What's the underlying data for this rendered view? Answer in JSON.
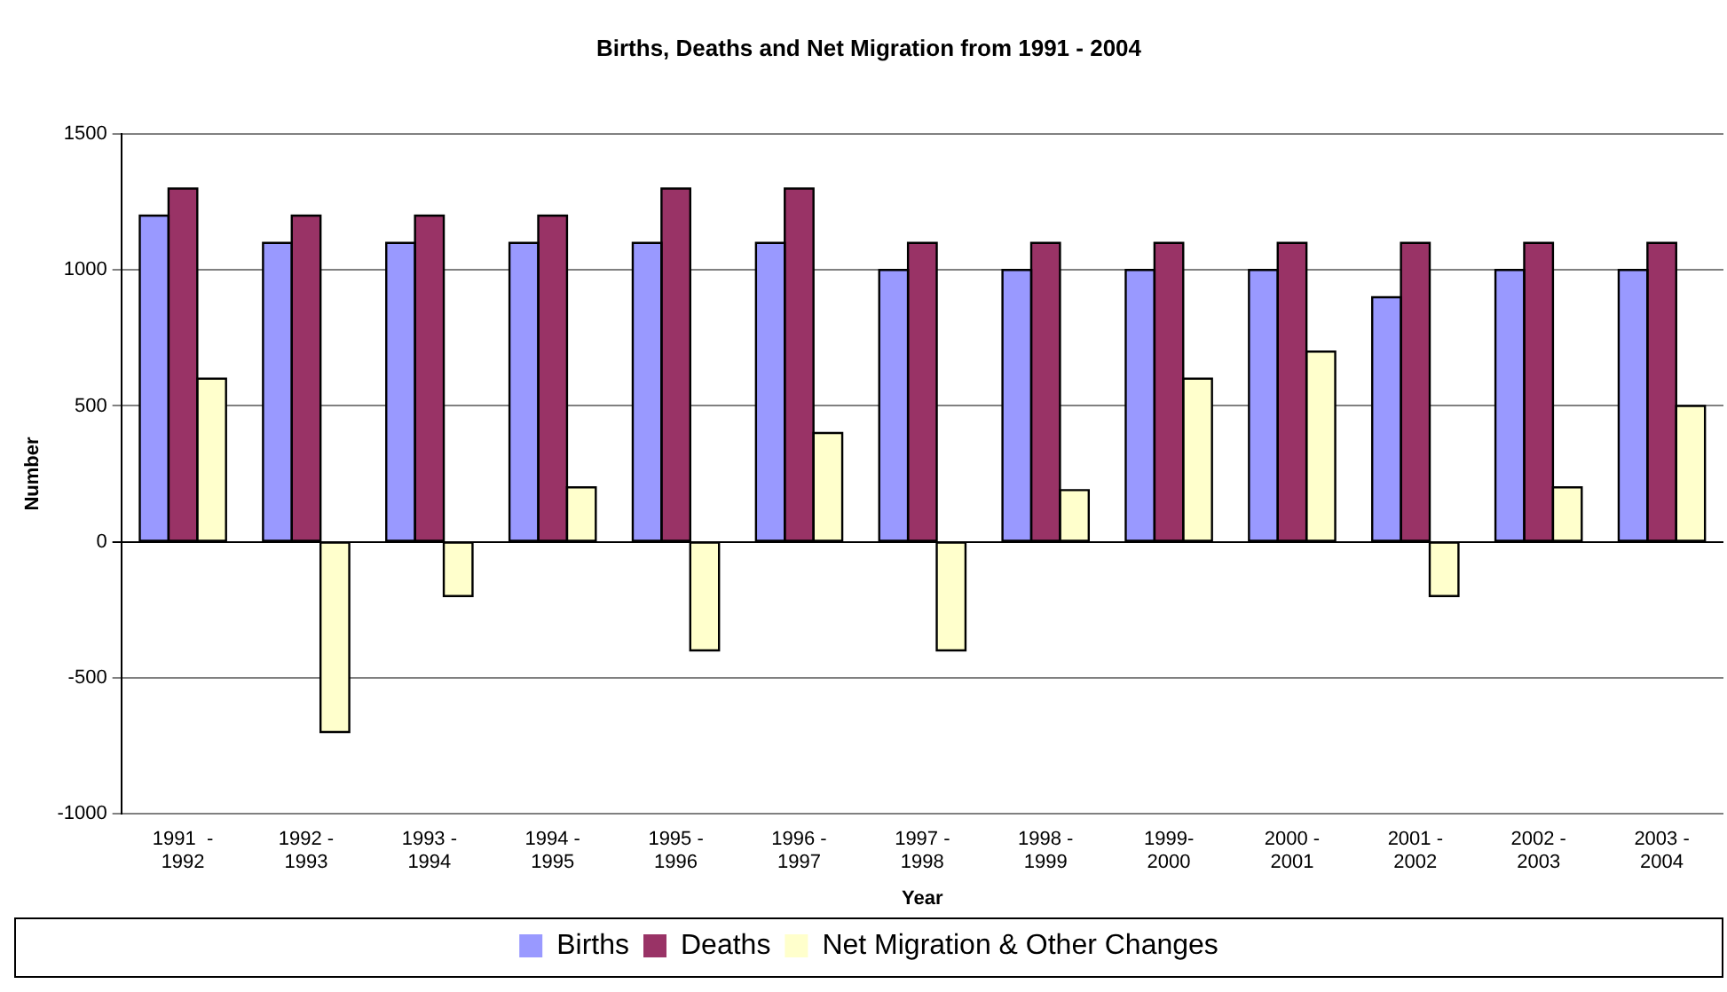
{
  "chart_data": {
    "type": "bar",
    "title": "Births, Deaths and Net Migration from 1991 - 2004",
    "xlabel": "Year",
    "ylabel": "Number",
    "categories": [
      "1991  - 1992",
      "1992 - 1993",
      "1993 - 1994",
      "1994 - 1995",
      "1995 - 1996",
      "1996 - 1997",
      "1997 - 1998",
      "1998 - 1999",
      "1999- 2000",
      "2000 - 2001",
      "2001 - 2002",
      "2002 - 2003",
      "2003 - 2004"
    ],
    "series": [
      {
        "name": "Births",
        "color": "#9999ff",
        "values": [
          1200,
          1100,
          1100,
          1100,
          1100,
          1100,
          1000,
          1000,
          1000,
          1000,
          900,
          1000,
          1000
        ]
      },
      {
        "name": "Deaths",
        "color": "#993366",
        "values": [
          1300,
          1200,
          1200,
          1200,
          1300,
          1300,
          1100,
          1100,
          1100,
          1100,
          1100,
          1100,
          1100
        ]
      },
      {
        "name": "Net Migration & Other Changes",
        "color": "#ffffcc",
        "values": [
          600,
          -700,
          -200,
          200,
          -400,
          400,
          -400,
          190,
          600,
          700,
          -200,
          200,
          500
        ]
      }
    ],
    "ylim": [
      -1000,
      1500
    ],
    "yticks": [
      -1000,
      -500,
      0,
      500,
      1000,
      1500
    ],
    "grid": "y",
    "legend": "bottom"
  }
}
